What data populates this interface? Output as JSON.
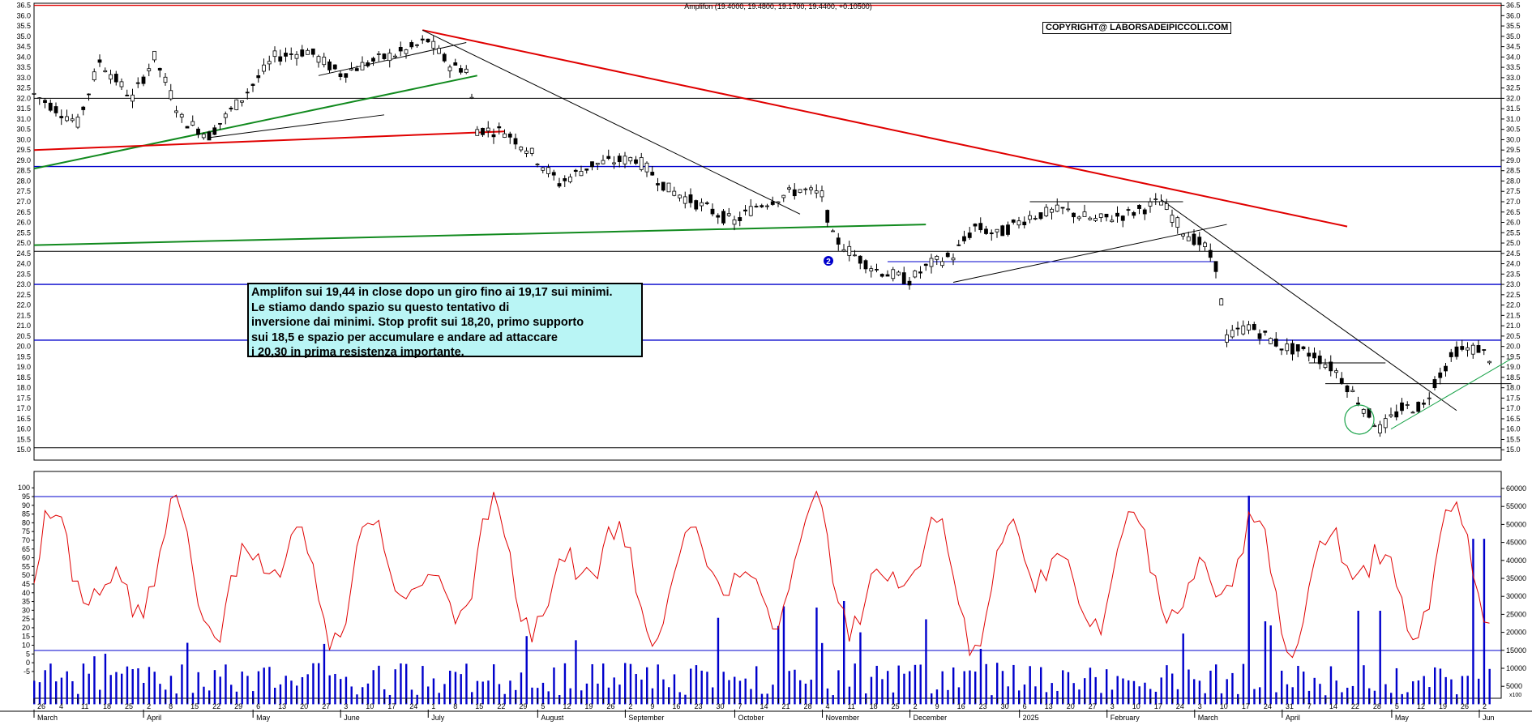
{
  "chart_data": [
    {
      "type": "candlestick",
      "title": "Amplifon (19.4000, 19.4800, 19.1700, 19.4400, +0.10500)",
      "ylim": [
        14.5,
        36.6
      ],
      "y_ticks": [
        "36.5",
        "36.0",
        "35.5",
        "35.0",
        "34.5",
        "34.0",
        "33.5",
        "33.0",
        "32.5",
        "32.0",
        "31.5",
        "31.0",
        "30.5",
        "30.0",
        "29.5",
        "29.0",
        "28.5",
        "28.0",
        "27.5",
        "27.0",
        "26.5",
        "26.0",
        "25.5",
        "25.0",
        "24.5",
        "24.0",
        "23.5",
        "23.0",
        "22.5",
        "22.0",
        "21.5",
        "21.0",
        "20.5",
        "20.0",
        "19.5",
        "19.0",
        "18.5",
        "18.0",
        "17.5",
        "17.0",
        "16.5",
        "16.0",
        "15.5",
        "15.0"
      ],
      "price_path": [
        {
          "t": 0,
          "p": 32.2
        },
        {
          "t": 8,
          "p": 30.8
        },
        {
          "t": 12,
          "p": 33.8
        },
        {
          "t": 18,
          "p": 32.0
        },
        {
          "t": 22,
          "p": 34.0
        },
        {
          "t": 27,
          "p": 31.0
        },
        {
          "t": 32,
          "p": 30.2
        },
        {
          "t": 38,
          "p": 32.0
        },
        {
          "t": 44,
          "p": 34.0
        },
        {
          "t": 50,
          "p": 34.3
        },
        {
          "t": 56,
          "p": 33.2
        },
        {
          "t": 62,
          "p": 33.8
        },
        {
          "t": 68,
          "p": 34.3
        },
        {
          "t": 72,
          "p": 34.8
        },
        {
          "t": 76,
          "p": 33.6
        },
        {
          "t": 79,
          "p": 33.4
        },
        {
          "t": 81,
          "p": 30.5
        },
        {
          "t": 86,
          "p": 30.4
        },
        {
          "t": 90,
          "p": 29.6
        },
        {
          "t": 96,
          "p": 27.9
        },
        {
          "t": 102,
          "p": 28.8
        },
        {
          "t": 110,
          "p": 29.1
        },
        {
          "t": 116,
          "p": 27.6
        },
        {
          "t": 122,
          "p": 26.8
        },
        {
          "t": 128,
          "p": 26.0
        },
        {
          "t": 132,
          "p": 26.8
        },
        {
          "t": 140,
          "p": 27.6
        },
        {
          "t": 144,
          "p": 27.3
        },
        {
          "t": 146,
          "p": 25.3
        },
        {
          "t": 150,
          "p": 24.4
        },
        {
          "t": 154,
          "p": 23.7
        },
        {
          "t": 160,
          "p": 23.2
        },
        {
          "t": 164,
          "p": 24.0
        },
        {
          "t": 168,
          "p": 24.4
        },
        {
          "t": 172,
          "p": 25.8
        },
        {
          "t": 176,
          "p": 25.4
        },
        {
          "t": 182,
          "p": 26.3
        },
        {
          "t": 188,
          "p": 26.6
        },
        {
          "t": 194,
          "p": 26.1
        },
        {
          "t": 200,
          "p": 26.4
        },
        {
          "t": 206,
          "p": 27.0
        },
        {
          "t": 210,
          "p": 25.6
        },
        {
          "t": 214,
          "p": 24.8
        },
        {
          "t": 216,
          "p": 23.9
        },
        {
          "t": 218,
          "p": 20.4
        },
        {
          "t": 222,
          "p": 21.0
        },
        {
          "t": 228,
          "p": 20.0
        },
        {
          "t": 234,
          "p": 19.6
        },
        {
          "t": 238,
          "p": 18.8
        },
        {
          "t": 242,
          "p": 17.4
        },
        {
          "t": 246,
          "p": 16.0
        },
        {
          "t": 250,
          "p": 17.0
        },
        {
          "t": 254,
          "p": 17.1
        },
        {
          "t": 256,
          "p": 18.3
        },
        {
          "t": 260,
          "p": 19.8
        },
        {
          "t": 264,
          "p": 19.9
        },
        {
          "t": 266,
          "p": 19.44
        }
      ],
      "horizontal_lines": [
        {
          "y": 36.5,
          "color": "#e00000"
        },
        {
          "y": 32.0,
          "color": "#000000"
        },
        {
          "y": 28.7,
          "color": "#0000cc"
        },
        {
          "y": 24.6,
          "color": "#000000"
        },
        {
          "y": 23.0,
          "color": "#0000cc"
        },
        {
          "y": 20.3,
          "color": "#0000cc"
        },
        {
          "y": 15.1,
          "color": "#000000"
        }
      ],
      "annotation_marker": "2"
    },
    {
      "type": "bar+line",
      "series": [
        {
          "name": "Volume",
          "color": "#0000cc"
        },
        {
          "name": "Oscillator",
          "color": "#e00000"
        }
      ],
      "osc_ticks": [
        "100",
        "95",
        "90",
        "85",
        "80",
        "75",
        "70",
        "65",
        "60",
        "55",
        "50",
        "45",
        "40",
        "35",
        "30",
        "25",
        "20",
        "15",
        "10",
        "5",
        "0",
        "-5"
      ],
      "vol_ticks": [
        "60000",
        "55000",
        "50000",
        "45000",
        "40000",
        "35000",
        "30000",
        "25000",
        "20000",
        "15000",
        "10000",
        "5000"
      ],
      "volume_corner_label": "x100",
      "reference_lines": [
        {
          "osc": 95
        },
        {
          "osc": 7
        }
      ]
    }
  ],
  "x_axis": {
    "days": [
      "26",
      "4",
      "11",
      "18",
      "25",
      "2",
      "8",
      "15",
      "22",
      "29",
      "6",
      "13",
      "20",
      "27",
      "3",
      "10",
      "17",
      "24",
      "1",
      "8",
      "15",
      "22",
      "29",
      "5",
      "12",
      "19",
      "26",
      "2",
      "9",
      "16",
      "23",
      "30",
      "7",
      "14",
      "21",
      "28",
      "4",
      "11",
      "18",
      "25",
      "2",
      "9",
      "16",
      "23",
      "30",
      "6",
      "13",
      "20",
      "27",
      "3",
      "10",
      "17",
      "24",
      "3",
      "10",
      "17",
      "24",
      "31",
      "7",
      "14",
      "22",
      "28",
      "5",
      "12",
      "19",
      "26",
      "2"
    ],
    "months": [
      "March",
      "April",
      "May",
      "June",
      "July",
      "August",
      "September",
      "October",
      "November",
      "December",
      "2025",
      "February",
      "March",
      "April",
      "May",
      "Jun"
    ]
  },
  "header": {
    "instrument_label": "Amplifon (19.4000, 19.4800, 19.1700, 19.4400, +0.10500)"
  },
  "copyright": "COPYRIGHT@ LABORSADEIPICCOLI.COM",
  "note": {
    "lines": [
      "Amplifon sui 19,44 in close dopo un giro fino ai 19,17 sui minimi.",
      "Le stiamo dando spazio su questo tentativo di",
      "inversione dai minimi. Stop profit sui 18,20, primo supporto",
      "sui 18,5  e spazio per accumulare e andare ad attaccare",
      "i 20,30 in prima resistenza importante."
    ]
  }
}
